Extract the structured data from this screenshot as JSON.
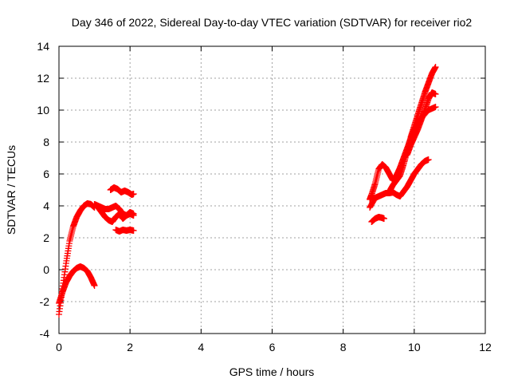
{
  "chart_data": {
    "type": "scatter",
    "title": "Day 346 of 2022, Sidereal Day-to-day VTEC variation (SDTVAR) for receiver rio2",
    "xlabel": "GPS time / hours",
    "ylabel": "SDTVAR / TECUs",
    "xlim": [
      0,
      12
    ],
    "ylim": [
      -4,
      14
    ],
    "xticks": [
      0,
      2,
      4,
      6,
      8,
      10,
      12
    ],
    "yticks": [
      -4,
      -2,
      0,
      2,
      4,
      6,
      8,
      10,
      12,
      14
    ],
    "grid": true,
    "marker": "plus",
    "color": "#ff0000",
    "series": [
      {
        "name": "arc-a1",
        "x": [
          0.0,
          0.1,
          0.2,
          0.3,
          0.4,
          0.5,
          0.6,
          0.7,
          0.8,
          0.9,
          1.0
        ],
        "y": [
          -2.8,
          -1.2,
          0.4,
          1.8,
          2.7,
          3.3,
          3.7,
          4.0,
          4.15,
          4.1,
          3.9
        ]
      },
      {
        "name": "arc-a2",
        "x": [
          0.0,
          0.1,
          0.2,
          0.3,
          0.4,
          0.5,
          0.6,
          0.7,
          0.8,
          0.9,
          1.0
        ],
        "y": [
          -2.1,
          -1.4,
          -0.8,
          -0.4,
          -0.1,
          0.1,
          0.2,
          0.1,
          -0.1,
          -0.5,
          -1.0
        ]
      },
      {
        "name": "arc-a3",
        "x": [
          1.0,
          1.1,
          1.2,
          1.3,
          1.4,
          1.5,
          1.6,
          1.7,
          1.8,
          1.9,
          2.0,
          2.1
        ],
        "y": [
          4.1,
          3.9,
          3.6,
          3.3,
          3.1,
          3.0,
          3.3,
          3.5,
          3.2,
          3.4,
          3.5,
          3.4
        ]
      },
      {
        "name": "arc-a4",
        "x": [
          1.0,
          1.1,
          1.2,
          1.3,
          1.4,
          1.5,
          1.6,
          1.7,
          1.8,
          1.9,
          2.0,
          2.1
        ],
        "y": [
          4.1,
          4.0,
          3.9,
          3.8,
          3.8,
          3.9,
          4.0,
          3.8,
          3.5,
          3.4,
          3.6,
          3.5
        ]
      },
      {
        "name": "arc-a5",
        "x": [
          1.45,
          1.55,
          1.65,
          1.75,
          1.85,
          1.95,
          2.05,
          2.1
        ],
        "y": [
          5.0,
          5.15,
          5.05,
          4.85,
          4.95,
          4.85,
          4.7,
          4.75
        ]
      },
      {
        "name": "arc-a6",
        "x": [
          1.6,
          1.7,
          1.8,
          1.9,
          2.0,
          2.1
        ],
        "y": [
          2.5,
          2.4,
          2.5,
          2.45,
          2.5,
          2.45
        ]
      },
      {
        "name": "arc-b1",
        "x": [
          8.75,
          8.9,
          9.0,
          9.1,
          9.2,
          9.3,
          9.4,
          9.5,
          9.6,
          9.7,
          9.8,
          9.9,
          10.0,
          10.1,
          10.2,
          10.3,
          10.4
        ],
        "y": [
          3.9,
          4.5,
          4.6,
          4.7,
          4.8,
          4.8,
          4.85,
          4.7,
          4.6,
          4.9,
          5.2,
          5.6,
          6.0,
          6.3,
          6.6,
          6.8,
          6.9
        ]
      },
      {
        "name": "arc-b2",
        "x": [
          8.75,
          8.8,
          8.9,
          9.0,
          9.1,
          9.2,
          9.3,
          9.4,
          9.5,
          9.6,
          9.7,
          9.8,
          9.9,
          10.0,
          10.2,
          10.4,
          10.6
        ],
        "y": [
          4.4,
          4.7,
          5.4,
          6.3,
          6.6,
          6.4,
          6.0,
          5.6,
          5.9,
          6.4,
          7.0,
          7.6,
          8.2,
          8.8,
          9.5,
          10.0,
          10.2
        ]
      },
      {
        "name": "arc-b3",
        "x": [
          9.3,
          9.4,
          9.5,
          9.6,
          9.7,
          9.8,
          9.9,
          10.0,
          10.1,
          10.2,
          10.3,
          10.4,
          10.5,
          10.6
        ],
        "y": [
          4.9,
          5.3,
          5.6,
          5.9,
          6.6,
          7.4,
          8.3,
          9.0,
          9.7,
          10.4,
          11.1,
          11.7,
          12.3,
          12.7
        ]
      },
      {
        "name": "arc-b4",
        "x": [
          9.8,
          9.9,
          10.0,
          10.1,
          10.2,
          10.3,
          10.4,
          10.5,
          10.6
        ],
        "y": [
          7.2,
          7.8,
          8.3,
          8.8,
          9.4,
          10.0,
          10.7,
          11.1,
          11.0
        ]
      },
      {
        "name": "arc-b5",
        "x": [
          8.8,
          8.9,
          9.0,
          9.1,
          9.15
        ],
        "y": [
          3.0,
          3.2,
          3.3,
          3.25,
          3.2
        ]
      }
    ]
  }
}
